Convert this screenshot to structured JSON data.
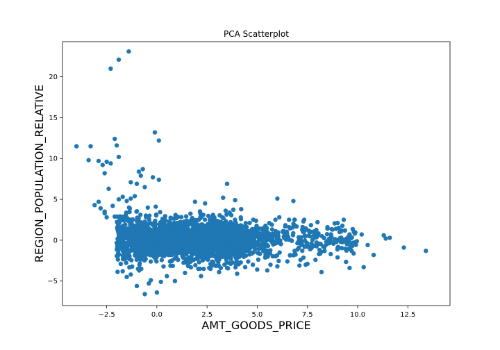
{
  "chart_data": {
    "type": "scatter",
    "title": "PCA Scatterplot",
    "xlabel": "AMT_GOODS_PRICE",
    "ylabel": "REGION_POPULATION_RELATIVE",
    "xlim": [
      -4.7,
      14.6
    ],
    "ylim": [
      -8.0,
      24.3
    ],
    "xticks": [
      -2.5,
      0.0,
      2.5,
      5.0,
      7.5,
      10.0,
      12.5
    ],
    "xtick_labels": [
      "−2.5",
      "0.0",
      "2.5",
      "5.0",
      "7.5",
      "10.0",
      "12.5"
    ],
    "yticks": [
      -5,
      0,
      5,
      10,
      15,
      20
    ],
    "ytick_labels": [
      "−5",
      "0",
      "5",
      "10",
      "15",
      "20"
    ],
    "grid": false,
    "point_color": "#1f77b4",
    "series": [
      {
        "x": [
          -1.4,
          -1.9,
          -2.3,
          -4.0,
          -3.3,
          -3.4,
          -2.9,
          -2.7,
          -2.5,
          -2.3,
          -2.1,
          -2.0,
          -1.9,
          -2.4,
          -2.6,
          -0.1,
          0.1,
          -0.7,
          -0.9,
          -0.8,
          -0.2,
          0.1,
          -1.3,
          -1.0,
          -0.6,
          -2.9,
          -3.1,
          -2.8,
          -2.6,
          -2.2,
          -2.5,
          -2.6,
          -2.1,
          -1.9,
          -1.7,
          -1.5,
          -1.3,
          -1.1,
          3.5,
          3.3,
          2.4,
          3.9,
          6.0,
          6.8,
          4.2,
          2.8,
          1.9,
          8.0,
          8.5,
          9.1,
          9.6,
          10.2,
          10.8,
          11.3,
          11.6,
          12.3,
          13.4,
          9.6,
          10.3,
          8.2,
          7.5,
          7.9,
          9.0,
          9.7,
          10.5,
          11.4,
          7.3,
          6.8,
          6.1,
          5.6,
          5.2,
          4.8,
          0.0,
          -0.6,
          0.9,
          -0.4,
          0.2,
          -0.3,
          -1.0,
          0.5,
          -1.3,
          -1.5,
          -1.7,
          -1.8,
          4.0,
          5.0,
          6.0,
          7.1,
          3.1,
          2.2,
          1.4,
          4.4,
          5.5,
          6.5
        ],
        "y": [
          23.1,
          22.1,
          21.0,
          11.5,
          11.5,
          9.8,
          9.7,
          9.2,
          9.6,
          9.4,
          12.4,
          11.6,
          10.2,
          6.3,
          8.2,
          13.2,
          12.2,
          8.7,
          8.4,
          7.9,
          7.7,
          7.4,
          7.1,
          6.9,
          6.5,
          4.7,
          4.3,
          3.9,
          3.5,
          4.2,
          2.8,
          3.3,
          2.9,
          5.0,
          5.3,
          4.8,
          5.1,
          5.4,
          6.9,
          5.2,
          4.5,
          4.9,
          5.1,
          4.8,
          3.8,
          3.1,
          4.7,
          2.2,
          1.6,
          1.0,
          0.7,
          0.7,
          -1.8,
          0.6,
          0.3,
          -0.9,
          -1.3,
          -3.4,
          -3.3,
          -3.9,
          -2.9,
          -2.4,
          -2.1,
          -1.3,
          -0.6,
          0.2,
          2.3,
          2.0,
          2.8,
          2.1,
          1.4,
          2.5,
          -6.4,
          -6.6,
          -5.0,
          -5.3,
          -5.1,
          -4.9,
          -5.6,
          -4.4,
          -4.2,
          -4.5,
          -3.8,
          -2.9,
          -4.1,
          -3.6,
          -3.2,
          -3.1,
          -3.9,
          -4.4,
          -4.0,
          -3.3,
          -3.7,
          -2.6
        ]
      }
    ],
    "dense_cluster": {
      "core": {
        "x_range": [
          -1.0,
          4.2
        ],
        "y_range": [
          -3.5,
          4.5
        ]
      },
      "tail": {
        "x_range": [
          4.2,
          10.0
        ],
        "y_range": [
          -3.0,
          2.5
        ]
      }
    }
  }
}
